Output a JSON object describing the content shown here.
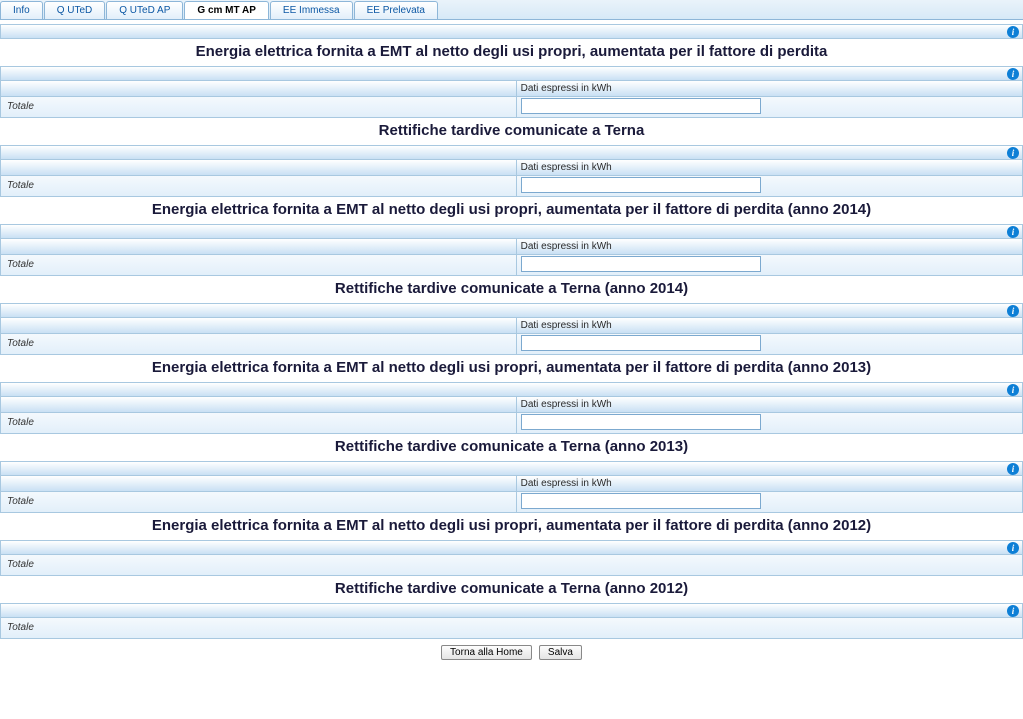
{
  "tabs": [
    {
      "label": "Info",
      "active": false
    },
    {
      "label": "Q UTeD",
      "active": false
    },
    {
      "label": "Q UTeD AP",
      "active": false
    },
    {
      "label": "G cm MT AP",
      "active": true
    },
    {
      "label": "EE Immessa",
      "active": false
    },
    {
      "label": "EE Prelevata",
      "active": false
    }
  ],
  "column_header": "Dati espressi in kWh",
  "row_label": "Totale",
  "info_glyph": "i",
  "sections": [
    {
      "title": "Energia elettrica fornita a EMT al netto degli usi propri, aumentata per il fattore di perdita",
      "has_header": true,
      "has_input": true
    },
    {
      "title": "Rettifiche tardive comunicate a Terna",
      "has_header": true,
      "has_input": true
    },
    {
      "title": "Energia elettrica fornita a EMT al netto degli usi propri, aumentata per il fattore di perdita (anno 2014)",
      "has_header": true,
      "has_input": true
    },
    {
      "title": "Rettifiche tardive comunicate a Terna (anno 2014)",
      "has_header": true,
      "has_input": true
    },
    {
      "title": "Energia elettrica fornita a EMT al netto degli usi propri, aumentata per il fattore di perdita (anno 2013)",
      "has_header": true,
      "has_input": true
    },
    {
      "title": "Rettifiche tardive comunicate a Terna (anno 2013)",
      "has_header": true,
      "has_input": true
    },
    {
      "title": "Energia elettrica fornita a EMT al netto degli usi propri, aumentata per il fattore di perdita (anno 2012)",
      "has_header": false,
      "has_input": false
    },
    {
      "title": "Rettifiche tardive comunicate a Terna (anno 2012)",
      "has_header": false,
      "has_input": false
    }
  ],
  "footer": {
    "home_button": "Torna alla Home",
    "save_button": "Salva"
  },
  "colors": {
    "tab_border": "#8db6d8",
    "tab_link": "#0b57a4",
    "cell_border": "#a8c8e0",
    "grad_light": "#ffffff",
    "grad_dark": "#c9e0f4",
    "row_grad_light": "#f4f9fd",
    "row_grad_dark": "#e2effa",
    "info_bg": "#0d7fd6",
    "title_color": "#1a1a3a"
  }
}
